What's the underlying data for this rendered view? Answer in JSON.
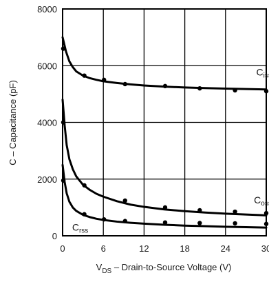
{
  "chart_data": {
    "type": "line",
    "xlabel": {
      "main": "V",
      "sub": "DS",
      "rest": " – Drain-to-Source Voltage (V)"
    },
    "ylabel": "C – Capacitance (pF)",
    "xlim": [
      0,
      30
    ],
    "ylim": [
      0,
      8000
    ],
    "xticks": [
      "0",
      "6",
      "12",
      "18",
      "24",
      "30"
    ],
    "yticks": [
      "0",
      "2000",
      "4000",
      "6000",
      "8000"
    ],
    "xtick_values": [
      0,
      6,
      12,
      18,
      24,
      30
    ],
    "ytick_values": [
      0,
      2000,
      4000,
      6000,
      8000
    ],
    "grid": true,
    "series": [
      {
        "name": "Ciss",
        "label_main": "C",
        "label_sub": "iss",
        "curve": {
          "x": [
            0,
            0.5,
            1,
            1.5,
            2,
            3,
            4,
            5,
            6,
            8,
            10,
            12,
            15,
            18,
            21,
            24,
            27,
            30
          ],
          "y": [
            7000,
            6500,
            6150,
            5950,
            5800,
            5650,
            5560,
            5500,
            5450,
            5390,
            5340,
            5300,
            5260,
            5230,
            5210,
            5190,
            5175,
            5160
          ]
        },
        "points": {
          "x": [
            0.1,
            3.2,
            6.1,
            9.2,
            15.1,
            20.2,
            25.4,
            30
          ],
          "y": [
            6600,
            5650,
            5500,
            5350,
            5280,
            5200,
            5130,
            5100
          ]
        }
      },
      {
        "name": "Coss",
        "label_main": "C",
        "label_sub": "oss",
        "curve": {
          "x": [
            0,
            0.3,
            0.6,
            1,
            1.5,
            2,
            3,
            4,
            5,
            6,
            8,
            10,
            12,
            15,
            18,
            21,
            24,
            27,
            30
          ],
          "y": [
            4800,
            3900,
            3200,
            2700,
            2350,
            2100,
            1800,
            1620,
            1480,
            1380,
            1220,
            1100,
            1020,
            930,
            870,
            820,
            780,
            750,
            720
          ]
        },
        "points": {
          "x": [
            0.1,
            3.2,
            9.2,
            15.1,
            20.2,
            25.4,
            30
          ],
          "y": [
            4000,
            1780,
            1240,
            1000,
            900,
            850,
            800
          ]
        }
      },
      {
        "name": "Crss",
        "label_main": "C",
        "label_sub": "rss",
        "curve": {
          "x": [
            0,
            0.3,
            0.6,
            1,
            1.5,
            2,
            3,
            4,
            5,
            6,
            8,
            10,
            12,
            15,
            18,
            21,
            24,
            27,
            30
          ],
          "y": [
            2500,
            1900,
            1500,
            1200,
            1000,
            880,
            740,
            660,
            600,
            560,
            500,
            460,
            430,
            390,
            360,
            340,
            320,
            305,
            290
          ]
        },
        "points": {
          "x": [
            0.1,
            3.2,
            6.1,
            9.2,
            15.1,
            20.2,
            25.4,
            30
          ],
          "y": [
            1950,
            760,
            580,
            520,
            470,
            450,
            440,
            420
          ]
        }
      }
    ]
  }
}
